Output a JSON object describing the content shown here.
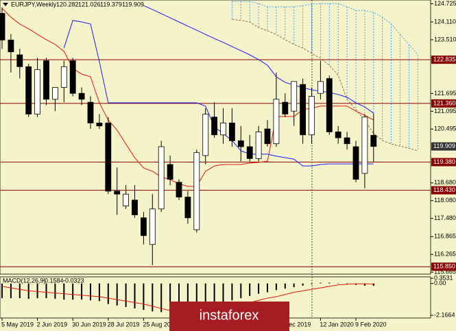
{
  "chart_data": [
    {
      "type": "candlestick",
      "title": "EURJPY,Weekly",
      "header_values": [
        120.282,
        121.026,
        119.379,
        119.909
      ],
      "categories": [
        "5 May 2019",
        null,
        null,
        null,
        "2 Jun 2019",
        null,
        null,
        null,
        "30 Jun 2019",
        null,
        null,
        null,
        "28 Jul 2019",
        null,
        null,
        null,
        "25 Aug 20",
        null,
        null,
        null,
        null,
        null,
        null,
        null,
        null,
        null,
        null,
        null,
        null,
        null,
        null,
        null,
        "Dec 2019",
        null,
        null,
        null,
        "12 Jan 2020",
        null,
        null,
        null,
        "9 Feb 2020",
        null,
        null,
        null,
        null,
        null,
        null,
        null
      ],
      "open": [
        124.4,
        123.5,
        123.0,
        122.6,
        121.0,
        122.8,
        121.5,
        121.9,
        122.8,
        121.7,
        121.4,
        120.7,
        120.7,
        118.4,
        117.9,
        118.1,
        117.5,
        116.6,
        117.8,
        119.3,
        118.7,
        118.2,
        117.1,
        119.6,
        120.9,
        120.3,
        120.7,
        120.1,
        119.9,
        119.5,
        120.5,
        120.0,
        121.4,
        121.1,
        122.0,
        120.3,
        121.7,
        122.2,
        120.4,
        120.2,
        119.9,
        119.0,
        120.282,
        null,
        null,
        null,
        null,
        null
      ],
      "high": [
        124.6,
        123.7,
        123.2,
        122.7,
        122.9,
        122.9,
        121.9,
        122.8,
        122.9,
        121.9,
        121.6,
        121.0,
        120.9,
        119.2,
        118.6,
        118.6,
        117.7,
        118.3,
        120.1,
        119.6,
        118.8,
        118.4,
        119.8,
        121.2,
        121.4,
        121.2,
        121.2,
        120.6,
        120.3,
        120.6,
        120.8,
        122.4,
        121.7,
        122.1,
        122.2,
        121.9,
        122.8,
        122.3,
        120.6,
        120.4,
        120.1,
        121.0,
        121.026,
        null,
        null,
        null,
        null,
        null
      ],
      "low": [
        123.2,
        122.4,
        122.2,
        120.9,
        120.9,
        121.3,
        121.1,
        121.4,
        121.6,
        121.3,
        120.5,
        120.5,
        118.3,
        117.6,
        117.8,
        117.5,
        116.6,
        115.9,
        117.7,
        118.6,
        118.1,
        117.3,
        117.0,
        119.3,
        120.2,
        120.0,
        119.9,
        119.4,
        119.4,
        119.4,
        119.9,
        119.9,
        120.9,
        120.6,
        120.0,
        120.0,
        121.5,
        120.3,
        120.0,
        119.8,
        118.7,
        118.5,
        119.379,
        null,
        null,
        null,
        null,
        null
      ],
      "close": [
        123.5,
        123.1,
        122.6,
        121.0,
        122.5,
        121.5,
        121.9,
        122.6,
        121.7,
        121.5,
        120.7,
        120.6,
        118.4,
        118.3,
        118.3,
        117.6,
        116.9,
        117.8,
        119.9,
        118.8,
        118.2,
        117.5,
        119.7,
        121.0,
        120.3,
        120.7,
        120.1,
        119.9,
        119.5,
        120.4,
        120.0,
        121.5,
        121.0,
        122.1,
        120.3,
        121.6,
        122.1,
        120.4,
        120.2,
        120.0,
        118.8,
        120.9,
        119.909,
        null,
        null,
        null,
        null,
        null
      ],
      "lines": [
        {
          "color": "#e8140c",
          "values": [
            124.57,
            124.27,
            124.04,
            123.88,
            123.69,
            123.51,
            123.35,
            123.12,
            122.54,
            122.35,
            122.26,
            121.38,
            120.8,
            120.46,
            119.99,
            119.53,
            119.18,
            119.07,
            118.88,
            118.79,
            118.65,
            118.56,
            118.56,
            119.07,
            119.25,
            119.3,
            119.3,
            119.3,
            119.35,
            119.37,
            119.41,
            120.92,
            120.92,
            120.92,
            121.15,
            121.2,
            121.27,
            121.27,
            121.27,
            121.27,
            121.1,
            120.96,
            120.8,
            null,
            null,
            null,
            null,
            null
          ]
        },
        {
          "color": "#1a1aff",
          "values": [
            null,
            null,
            null,
            null,
            null,
            null,
            null,
            123.23,
            124.16,
            124.11,
            124.04,
            122.77,
            121.38,
            121.38,
            121.38,
            121.38,
            121.38,
            121.38,
            121.38,
            121.38,
            121.38,
            121.38,
            121.38,
            121.27,
            120.57,
            120.34,
            120.11,
            119.76,
            119.65,
            119.65,
            119.65,
            119.58,
            119.53,
            119.48,
            119.25,
            119.25,
            119.3,
            119.32,
            119.32,
            119.32,
            119.32,
            119.32,
            119.32,
            null,
            null,
            null,
            null,
            null
          ]
        },
        {
          "color": "#1a1aff",
          "values": [
            null,
            null,
            null,
            null,
            null,
            null,
            null,
            null,
            null,
            null,
            null,
            null,
            null,
            null,
            null,
            null,
            124.66,
            124.53,
            124.39,
            124.25,
            124.11,
            123.97,
            123.83,
            123.69,
            123.55,
            123.42,
            123.28,
            123.14,
            123.0,
            122.84,
            122.65,
            122.26,
            122.07,
            121.98,
            121.89,
            121.82,
            121.77,
            121.73,
            121.66,
            121.57,
            121.38,
            121.24,
            121.03,
            null,
            null,
            null,
            null,
            null
          ]
        }
      ],
      "cloud": {
        "color": "#1e90ff",
        "edge_color": "#8b4513",
        "upper": [
          null,
          null,
          null,
          null,
          null,
          null,
          null,
          null,
          null,
          null,
          null,
          null,
          null,
          null,
          null,
          null,
          null,
          null,
          null,
          null,
          null,
          null,
          null,
          null,
          null,
          null,
          124.8,
          124.8,
          124.8,
          124.73,
          124.62,
          124.62,
          124.62,
          124.62,
          124.66,
          124.71,
          124.73,
          124.73,
          124.73,
          124.62,
          124.5,
          124.5,
          124.43,
          124.27,
          124.04,
          123.69,
          123.35,
          123.0
        ],
        "lower": [
          null,
          null,
          null,
          null,
          null,
          null,
          null,
          null,
          null,
          null,
          null,
          null,
          null,
          null,
          null,
          null,
          null,
          null,
          null,
          null,
          null,
          null,
          null,
          null,
          null,
          null,
          124.2,
          124.16,
          124.11,
          123.92,
          123.81,
          123.69,
          123.51,
          123.35,
          123.23,
          123.05,
          122.88,
          122.65,
          122.31,
          121.5,
          121.15,
          120.8,
          120.34,
          120.11,
          119.99,
          119.92,
          119.85,
          119.76
        ]
      },
      "levels": [
        122.835,
        {
          "value": 121.36,
          "label": "121.360"
        },
        {
          "value": 119.38,
          "label": "119.380"
        },
        {
          "value": 118.43,
          "label": "118.430"
        },
        {
          "value": 115.85,
          "label": "115.850"
        }
      ],
      "level_color": "#8b0000",
      "last_price": 119.909,
      "ylim": [
        115.6,
        124.85
      ],
      "yticks": [
        124.725,
        {
          "value": 124.11,
          "label": "124.110"
        },
        {
          "value": 123.51,
          "label": "123.510"
        },
        121.695,
        121.095,
        120.495,
        {
          "value": 118.68,
          "label": "118.680"
        },
        {
          "value": 118.08,
          "label": "118.080"
        },
        {
          "value": 117.48,
          "label": "117.480"
        },
        116.865,
        116.265,
        115.665
      ]
    },
    {
      "type": "macd",
      "title": "MACD(12,26,9)",
      "header_values": [
        -0.1584,
        -0.0323
      ],
      "histogram": [
        -1.0,
        -1.0,
        -1.0,
        -1.05,
        -1.0,
        -1.0,
        -1.05,
        -1.1,
        -1.1,
        -1.1,
        -1.15,
        -1.2,
        -1.4,
        -1.5,
        -1.6,
        -1.7,
        -1.8,
        -1.9,
        -1.95,
        -2.0,
        -1.95,
        -1.9,
        -1.85,
        -1.7,
        -1.5,
        -1.3,
        -1.15,
        -1.0,
        -0.85,
        -0.7,
        -0.6,
        -0.45,
        -0.35,
        -0.25,
        -0.15,
        -0.05,
        0.05,
        0.05,
        0.02,
        -0.05,
        -0.1,
        -0.15,
        -0.1584,
        null,
        null,
        null,
        null,
        null
      ],
      "signal": [
        -0.2,
        -0.3,
        -0.4,
        -0.5,
        -0.55,
        -0.6,
        -0.65,
        -0.7,
        -0.75,
        -0.8,
        -0.85,
        -0.9,
        -1.0,
        -1.1,
        -1.2,
        -1.3,
        -1.4,
        -1.55,
        -1.7,
        -1.85,
        -1.95,
        -1.98,
        -1.95,
        -1.9,
        -1.8,
        -1.7,
        -1.6,
        -1.45,
        -1.3,
        -1.15,
        -1.0,
        -0.9,
        -0.75,
        -0.6,
        -0.5,
        -0.4,
        -0.3,
        -0.2,
        -0.1,
        -0.05,
        -0.02,
        -0.03,
        -0.0323,
        null,
        null,
        null,
        null,
        null
      ],
      "signal_color": "#e8140c",
      "ylim": [
        -2.35,
        0.45
      ],
      "yticks": [
        0.3531,
        {
          "value": 0,
          "label": "0.00"
        },
        -2.1664
      ]
    },
    {
      "type": "watermark",
      "text": "instaforex"
    }
  ]
}
